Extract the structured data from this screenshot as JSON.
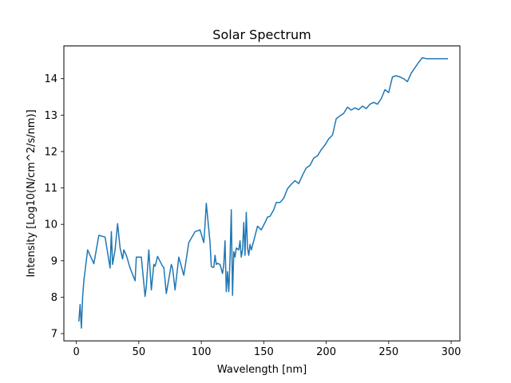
{
  "chart_data": {
    "type": "line",
    "title": "Solar Spectrum",
    "xlabel": "Wavelength [nm]",
    "ylabel": "Intensity [Log10(N/cm^2/s/nm)]",
    "xlim": [
      -10,
      307
    ],
    "ylim": [
      6.8,
      14.9
    ],
    "xticks": [
      0,
      50,
      100,
      150,
      200,
      250,
      300
    ],
    "yticks": [
      7,
      8,
      9,
      10,
      11,
      12,
      13,
      14
    ],
    "grid": false,
    "legend": "none",
    "series": [
      {
        "color": "#1f77b4",
        "x": [
          2,
          3,
          4,
          5,
          6,
          9,
          14,
          18,
          23,
          27,
          28,
          29,
          31,
          33,
          35,
          37,
          38,
          40,
          43,
          47,
          48,
          52,
          55,
          56,
          58,
          60,
          62,
          63,
          65,
          69,
          70,
          72,
          76,
          77,
          79,
          82,
          86,
          90,
          95,
          99,
          102,
          103,
          104,
          107,
          108,
          109,
          110,
          111,
          112,
          113,
          115,
          117,
          118,
          119,
          120,
          121,
          122,
          123,
          124,
          125,
          126,
          127,
          128,
          130,
          131,
          132,
          133,
          134,
          135,
          136,
          137,
          138,
          139,
          140,
          142,
          145,
          148,
          151,
          153,
          155,
          158,
          160,
          163,
          166,
          169,
          172,
          175,
          178,
          181,
          184,
          187,
          190,
          193,
          196,
          199,
          202,
          205,
          208,
          211,
          214,
          217,
          220,
          223,
          226,
          229,
          232,
          235,
          238,
          241,
          244,
          247,
          250,
          253,
          256,
          259,
          262,
          265,
          268,
          271,
          274,
          277,
          280,
          283,
          286,
          289,
          292,
          295,
          297
        ],
        "values": [
          7.35,
          7.8,
          7.15,
          8.0,
          8.45,
          9.3,
          8.92,
          9.7,
          9.65,
          8.8,
          9.8,
          8.9,
          9.3,
          10.02,
          9.35,
          9.05,
          9.3,
          9.15,
          8.8,
          8.45,
          9.1,
          9.1,
          8.02,
          8.3,
          9.3,
          8.2,
          8.9,
          8.85,
          9.12,
          8.85,
          8.82,
          8.1,
          8.9,
          8.8,
          8.2,
          9.1,
          8.6,
          9.5,
          9.8,
          9.85,
          9.5,
          10.0,
          10.58,
          9.5,
          8.85,
          8.82,
          8.82,
          9.15,
          8.9,
          8.93,
          8.9,
          8.65,
          8.9,
          9.55,
          8.15,
          8.7,
          8.15,
          9.05,
          10.4,
          8.05,
          9.25,
          9.1,
          9.35,
          9.3,
          9.55,
          9.1,
          9.3,
          10.05,
          9.15,
          10.33,
          9.35,
          9.15,
          9.45,
          9.3,
          9.55,
          9.95,
          9.85,
          10.05,
          10.2,
          10.22,
          10.4,
          10.6,
          10.6,
          10.72,
          10.98,
          11.1,
          11.2,
          11.12,
          11.35,
          11.55,
          11.62,
          11.82,
          11.88,
          12.05,
          12.18,
          12.35,
          12.45,
          12.9,
          12.98,
          13.05,
          13.22,
          13.14,
          13.2,
          13.15,
          13.25,
          13.18,
          13.3,
          13.35,
          13.3,
          13.45,
          13.7,
          13.62,
          14.05,
          14.08,
          14.05,
          14.0,
          13.92,
          14.15,
          14.3,
          14.45,
          14.58,
          14.55,
          14.55,
          14.55,
          14.55,
          14.55,
          14.55,
          14.55
        ]
      }
    ]
  }
}
